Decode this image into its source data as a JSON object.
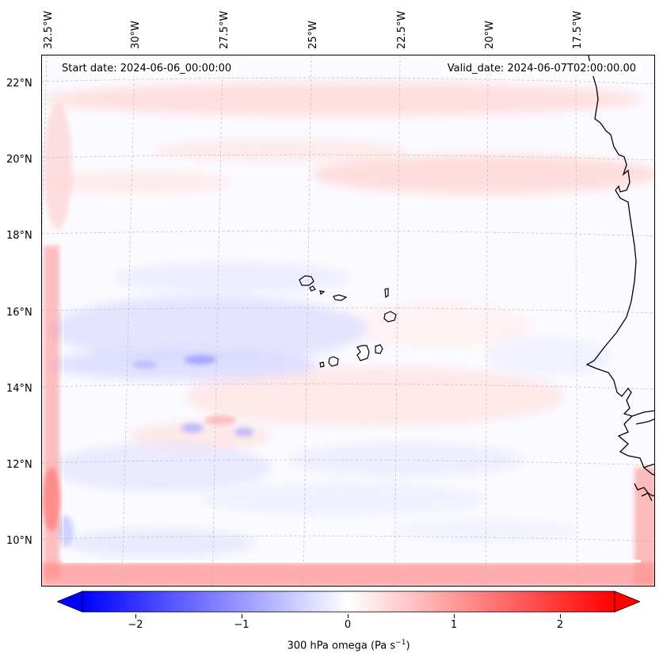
{
  "map": {
    "start_date": "Start date: 2024-06-06_00:00:00",
    "valid_date": "Valid_date: 2024-06-07T02:00:00.00",
    "lon_labels": [
      "32.5°W",
      "30°W",
      "27.5°W",
      "25°W",
      "22.5°W",
      "20°W",
      "17.5°W"
    ],
    "lat_labels": [
      "22°N",
      "20°N",
      "18°N",
      "16°N",
      "14°N",
      "12°N",
      "10°N"
    ],
    "field": "300 hPa omega",
    "color_scale": {
      "min": -2.5,
      "max": 2.5,
      "negative": "#0000ff",
      "zero": "#ffffff",
      "positive": "#ff0000"
    }
  },
  "colorbar": {
    "ticks": [
      "−2",
      "−1",
      "0",
      "1",
      "2"
    ],
    "tick_values": [
      -2,
      -1,
      0,
      1,
      2
    ],
    "label_main": "300 hPa omega (Pa s",
    "label_sup": "−1",
    "label_end": ")"
  }
}
